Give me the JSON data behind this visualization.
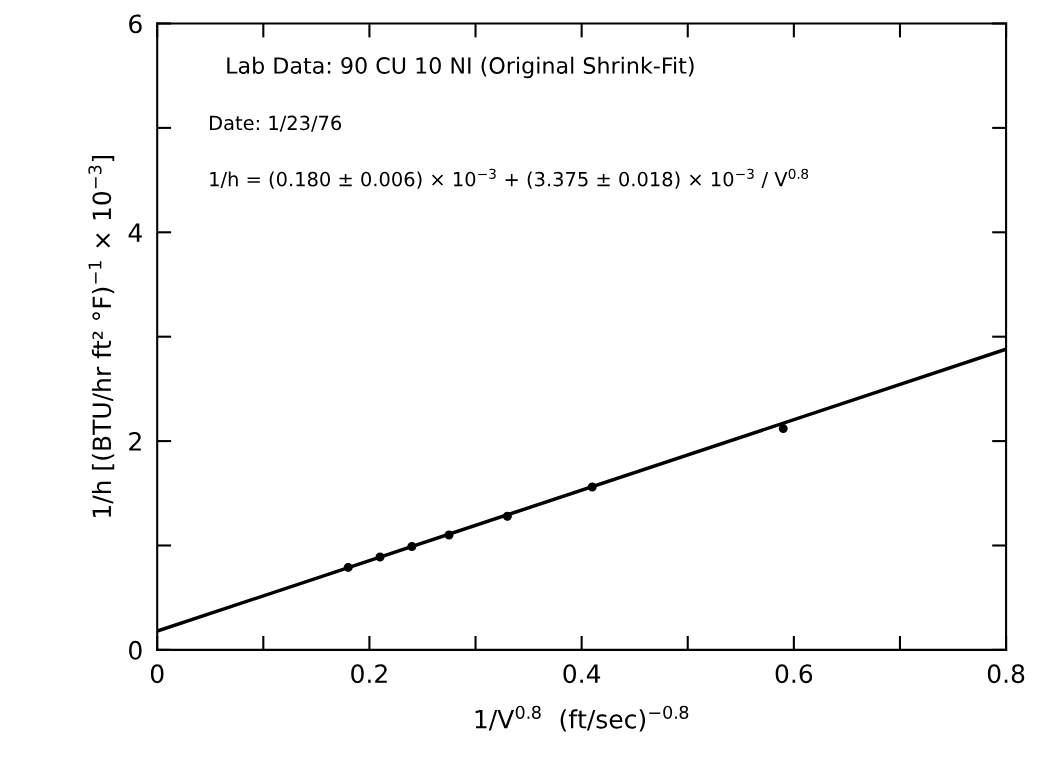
{
  "chart_data": {
    "type": "scatter",
    "xlabel": "1/V$^{0.8}$  (ft/sec)$^{−0.8}$",
    "ylabel": "1/h [(BTU/hr ft² °F)$^{−1}$ × 10$^{−3}$]",
    "annotations": [
      "Lab Data: 90 CU 10 NI (Original Shrink-Fit)",
      "Date: 1/23/76",
      "1/h = (0.180 ± 0.006) × 10$^{−3}$ + (3.375 ± 0.018) × 10$^{−3}$ / V$^{0.8}$"
    ],
    "series": [
      {
        "marker": "circle",
        "color": "#000000",
        "x": [
          0.18,
          0.21,
          0.24,
          0.275,
          0.33,
          0.41,
          0.59
        ],
        "values": [
          0.79,
          0.89,
          0.99,
          1.1,
          1.28,
          1.56,
          2.12
        ]
      },
      {
        "type": "line",
        "marker": "none",
        "color": "#000000",
        "x": [
          0,
          0.8
        ],
        "values": [
          0.18,
          2.88
        ]
      }
    ],
    "xlim": [
      0,
      0.8
    ],
    "ylim": [
      0,
      6
    ],
    "xticks": [
      {
        "value": 0,
        "label": "0"
      },
      {
        "value": 0.1,
        "label": null
      },
      0.2,
      {
        "value": 0.3,
        "label": null
      },
      0.4,
      {
        "value": 0.5,
        "label": null
      },
      0.6,
      {
        "value": 0.7,
        "label": null
      },
      0.8
    ],
    "yticks": [
      0,
      {
        "value": 1,
        "label": null
      },
      2,
      {
        "value": 3,
        "label": null
      },
      4,
      {
        "value": 5,
        "label": null
      },
      6
    ],
    "grid": false,
    "legend": false
  }
}
